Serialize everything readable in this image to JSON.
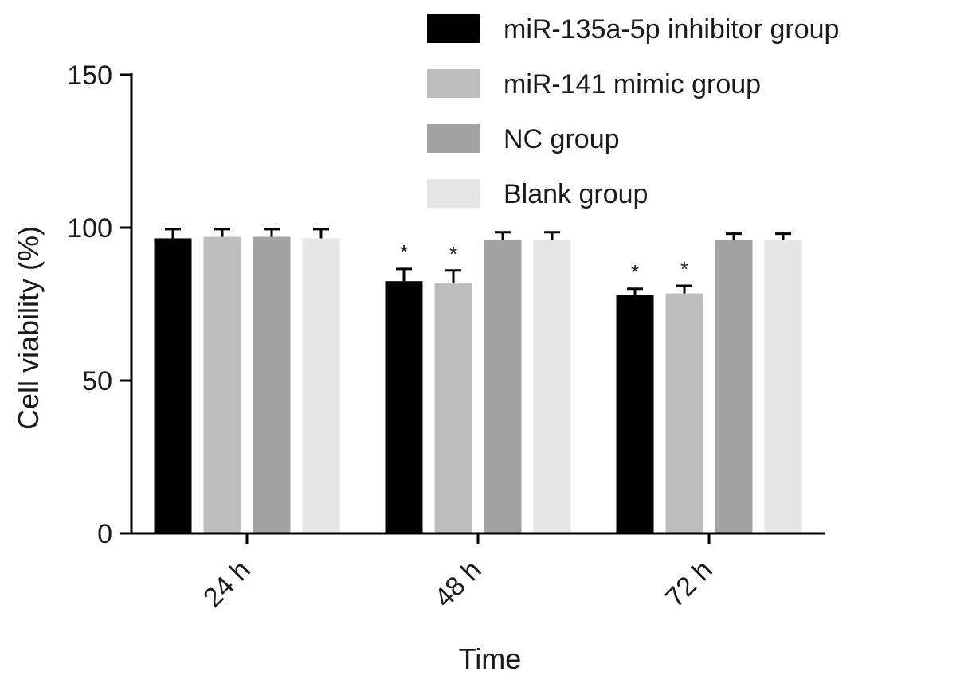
{
  "chart_data": {
    "type": "bar",
    "title": "",
    "xlabel": "Time",
    "ylabel": "Cell viability (%)",
    "ylim": [
      0,
      150
    ],
    "yticks": [
      0,
      50,
      100,
      150
    ],
    "categories": [
      "24 h",
      "48 h",
      "72 h"
    ],
    "series": [
      {
        "name": "miR-135a-5p inhibitor group",
        "color": "#000000",
        "values": [
          96.5,
          82.5,
          78.0
        ],
        "errors": [
          3.0,
          4.0,
          2.0
        ],
        "significance": [
          "",
          "*",
          "*"
        ]
      },
      {
        "name": "miR-141 mimic group",
        "color": "#bdbdbd",
        "values": [
          97.0,
          82.0,
          78.5
        ],
        "errors": [
          2.5,
          4.0,
          2.5
        ],
        "significance": [
          "",
          "*",
          "*"
        ]
      },
      {
        "name": "NC group",
        "color": "#a3a3a3",
        "values": [
          97.0,
          96.0,
          96.0
        ],
        "errors": [
          2.5,
          2.5,
          2.0
        ],
        "significance": [
          "",
          "",
          ""
        ]
      },
      {
        "name": "Blank group",
        "color": "#e6e6e6",
        "values": [
          96.5,
          96.0,
          96.0
        ],
        "errors": [
          3.0,
          2.5,
          2.0
        ],
        "significance": [
          "",
          "",
          ""
        ]
      }
    ],
    "legend_position": "top-right",
    "grid": false
  }
}
